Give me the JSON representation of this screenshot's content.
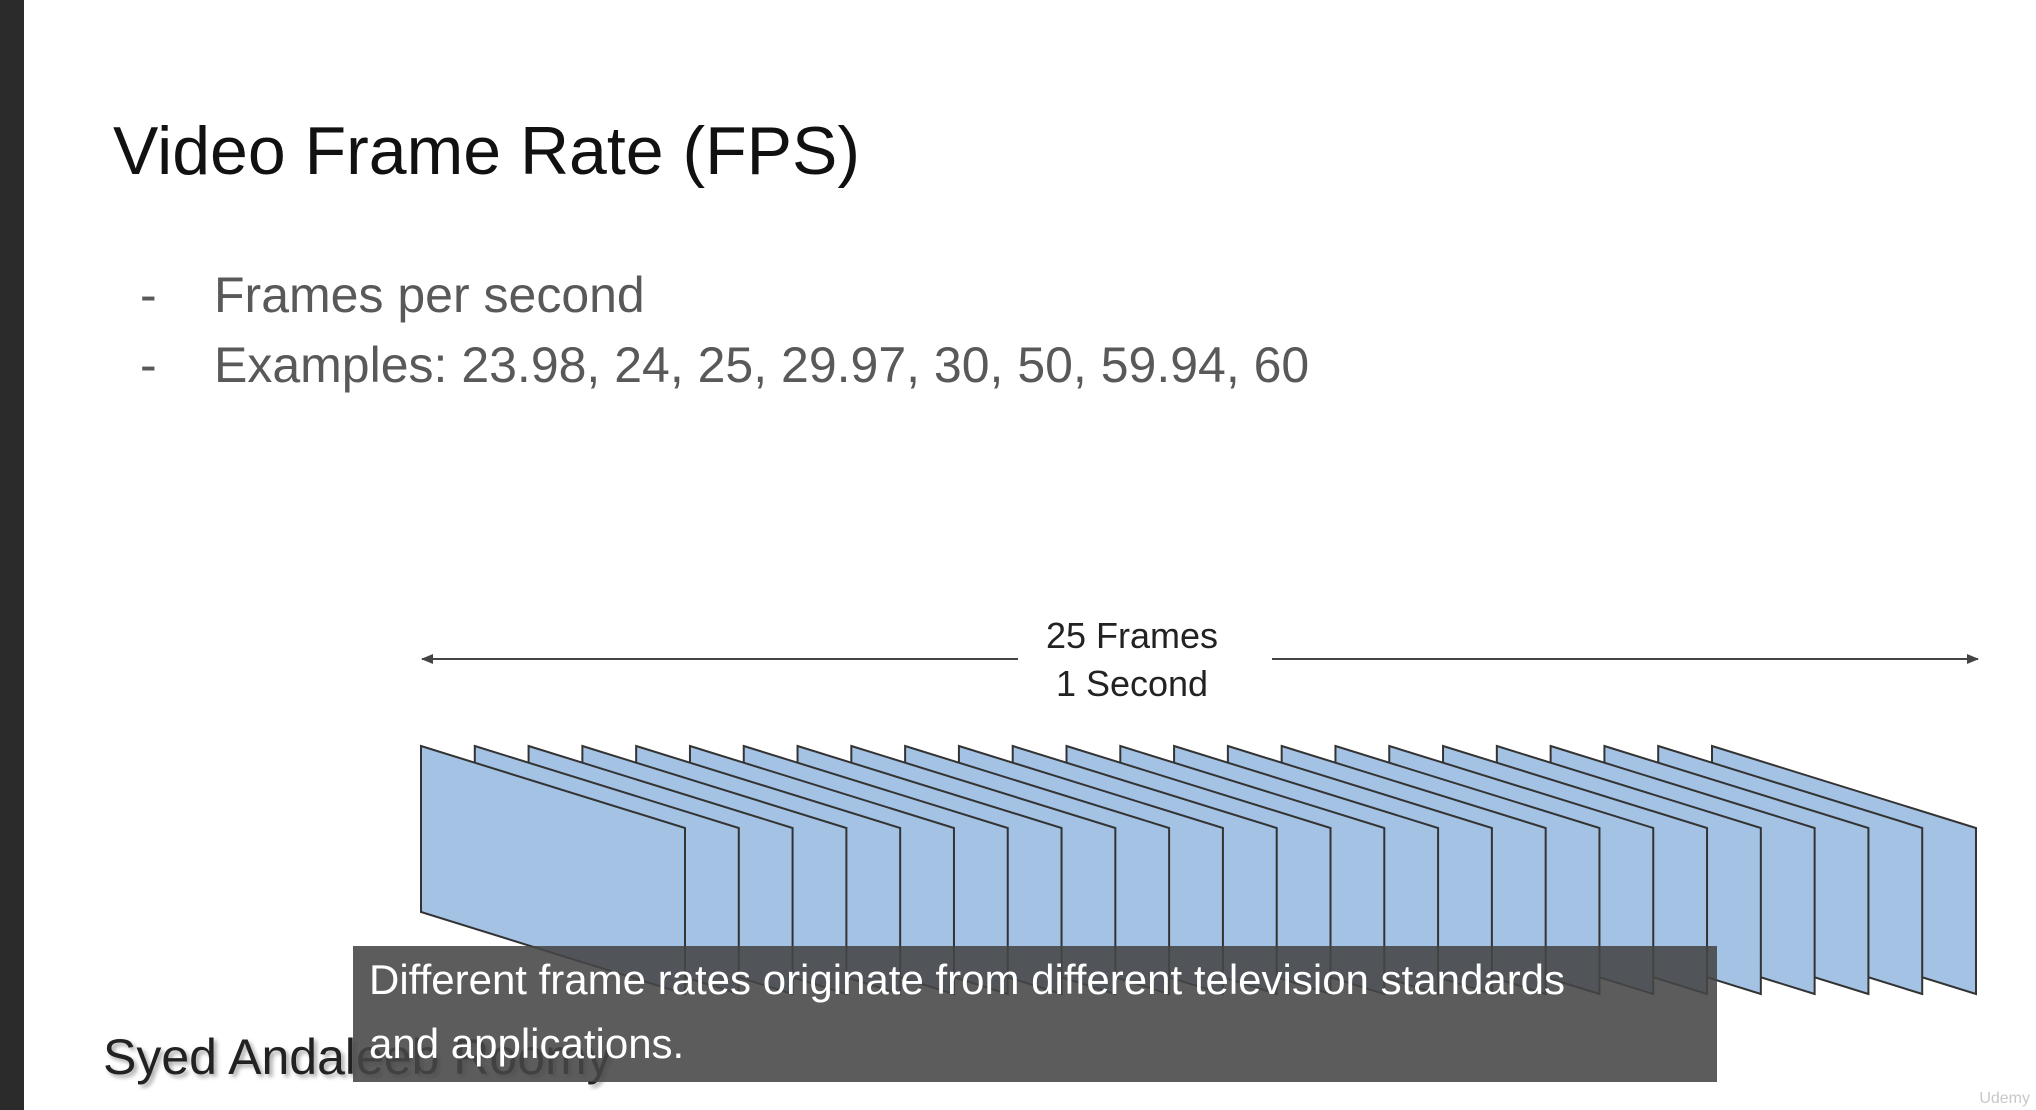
{
  "slide": {
    "title": "Video Frame Rate (FPS)",
    "bullets": [
      {
        "marker": "-",
        "text": "Frames per second"
      },
      {
        "marker": "-",
        "text": "Examples: 23.98, 24, 25, 29.97, 30, 50, 59.94, 60"
      }
    ],
    "diagram": {
      "label_frames": "25 Frames",
      "label_duration": "1 Second",
      "frame_count": 25,
      "frame_fill": "#a4c2e4",
      "frame_stroke": "#333333"
    },
    "author": "Syed Andaleeb Roomy"
  },
  "caption": {
    "line1": "Different frame rates originate from different television standards",
    "line2": "and applications."
  },
  "watermark": {
    "icon": "udemy-logo-icon",
    "text": "Udemy"
  }
}
